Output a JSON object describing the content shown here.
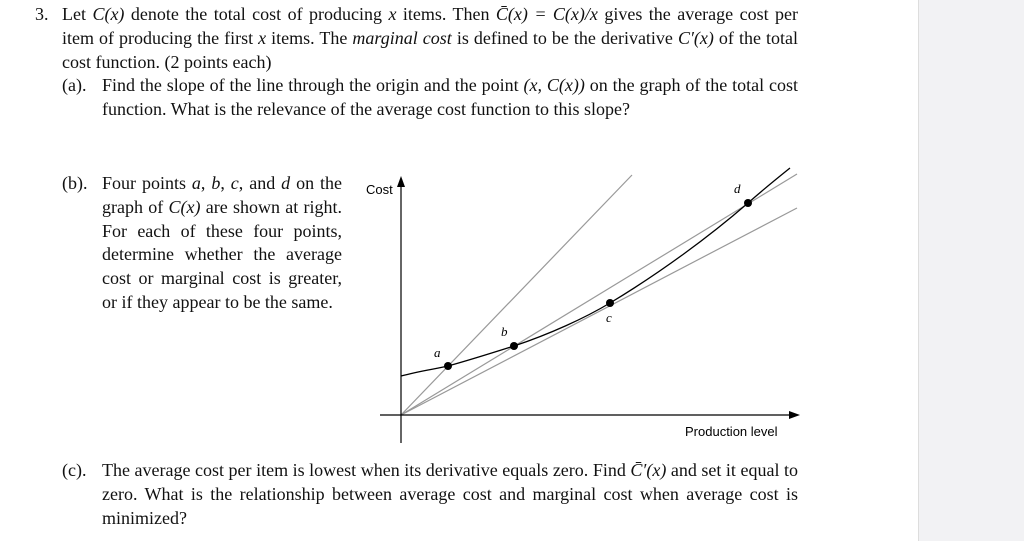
{
  "problem": {
    "number": "3.",
    "intro": [
      "Let ",
      "C(x)",
      " denote the total cost of producing ",
      "x",
      " items. Then ",
      "C̄(x) = C(x)/x",
      " gives the average cost per item of producing the first ",
      "x",
      " items. The ",
      "marginal cost",
      " is defined to be the derivative ",
      "C′(x)",
      " of the total cost function. (2 points each)"
    ],
    "parts": [
      {
        "label": "(a).",
        "text": [
          "Find the slope of the line through the origin and the point ",
          "(x, C(x))",
          " on the graph of the total cost function. What is the relevance of the average cost function to this slope?"
        ]
      },
      {
        "label": "(b).",
        "text": [
          "Four points ",
          "a",
          ", ",
          "b",
          ", ",
          "c",
          ", and ",
          "d",
          " on the graph of ",
          "C(x)",
          " are shown at right. For each of these four points, determine whether the average cost or marginal cost is greater, or if they appear to be the same."
        ]
      },
      {
        "label": "(c).",
        "text": [
          "The average cost per item is lowest when its derivative equals zero. Find ",
          "C̄′(x)",
          " and set it equal to zero. What is the relationship between average cost and marginal cost when average cost is minimized?"
        ]
      }
    ]
  },
  "diagram": {
    "y_label": "Cost",
    "x_label": "Production level",
    "points": [
      "a",
      "b",
      "c",
      "d"
    ]
  }
}
